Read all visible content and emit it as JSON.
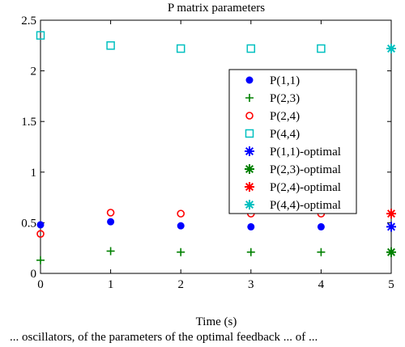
{
  "chart_data": {
    "type": "scatter",
    "title": "P matrix parameters",
    "xlabel": "Time (s)",
    "ylabel": "",
    "xlim": [
      0,
      5
    ],
    "ylim": [
      0,
      2.5
    ],
    "x_ticks": [
      "0",
      "1",
      "2",
      "3",
      "4",
      "5"
    ],
    "y_ticks": [
      "0",
      "0.5",
      "1",
      "1.5",
      "2",
      "2.5"
    ],
    "grid": false,
    "legend_position": "right",
    "series": [
      {
        "name": "P(1,1)",
        "marker": "dot",
        "color": "#0000ff",
        "x": [
          0,
          1,
          2,
          3,
          4
        ],
        "y": [
          0.48,
          0.51,
          0.47,
          0.46,
          0.46
        ]
      },
      {
        "name": "P(2,3)",
        "marker": "plus",
        "color": "#008000",
        "x": [
          0,
          1,
          2,
          3,
          4
        ],
        "y": [
          0.13,
          0.22,
          0.21,
          0.21,
          0.21
        ]
      },
      {
        "name": "P(2,4)",
        "marker": "circle",
        "color": "#ff0000",
        "x": [
          0,
          1,
          2,
          3,
          4
        ],
        "y": [
          0.39,
          0.6,
          0.59,
          0.59,
          0.59
        ]
      },
      {
        "name": "P(4,4)",
        "marker": "square",
        "color": "#00c0c0",
        "x": [
          0,
          1,
          2,
          3,
          4
        ],
        "y": [
          2.35,
          2.25,
          2.22,
          2.22,
          2.22
        ]
      },
      {
        "name": "P(1,1)-optimal",
        "marker": "star",
        "color": "#0000ff",
        "x": [
          5
        ],
        "y": [
          0.46
        ]
      },
      {
        "name": "P(2,3)-optimal",
        "marker": "star",
        "color": "#008000",
        "x": [
          5
        ],
        "y": [
          0.21
        ]
      },
      {
        "name": "P(2,4)-optimal",
        "marker": "star",
        "color": "#ff0000",
        "x": [
          5
        ],
        "y": [
          0.59
        ]
      },
      {
        "name": "P(4,4)-optimal",
        "marker": "star",
        "color": "#00c0c0",
        "x": [
          5
        ],
        "y": [
          2.22
        ]
      }
    ]
  },
  "caption": "... oscillators, of the parameters of the optimal feedback ... of ..."
}
